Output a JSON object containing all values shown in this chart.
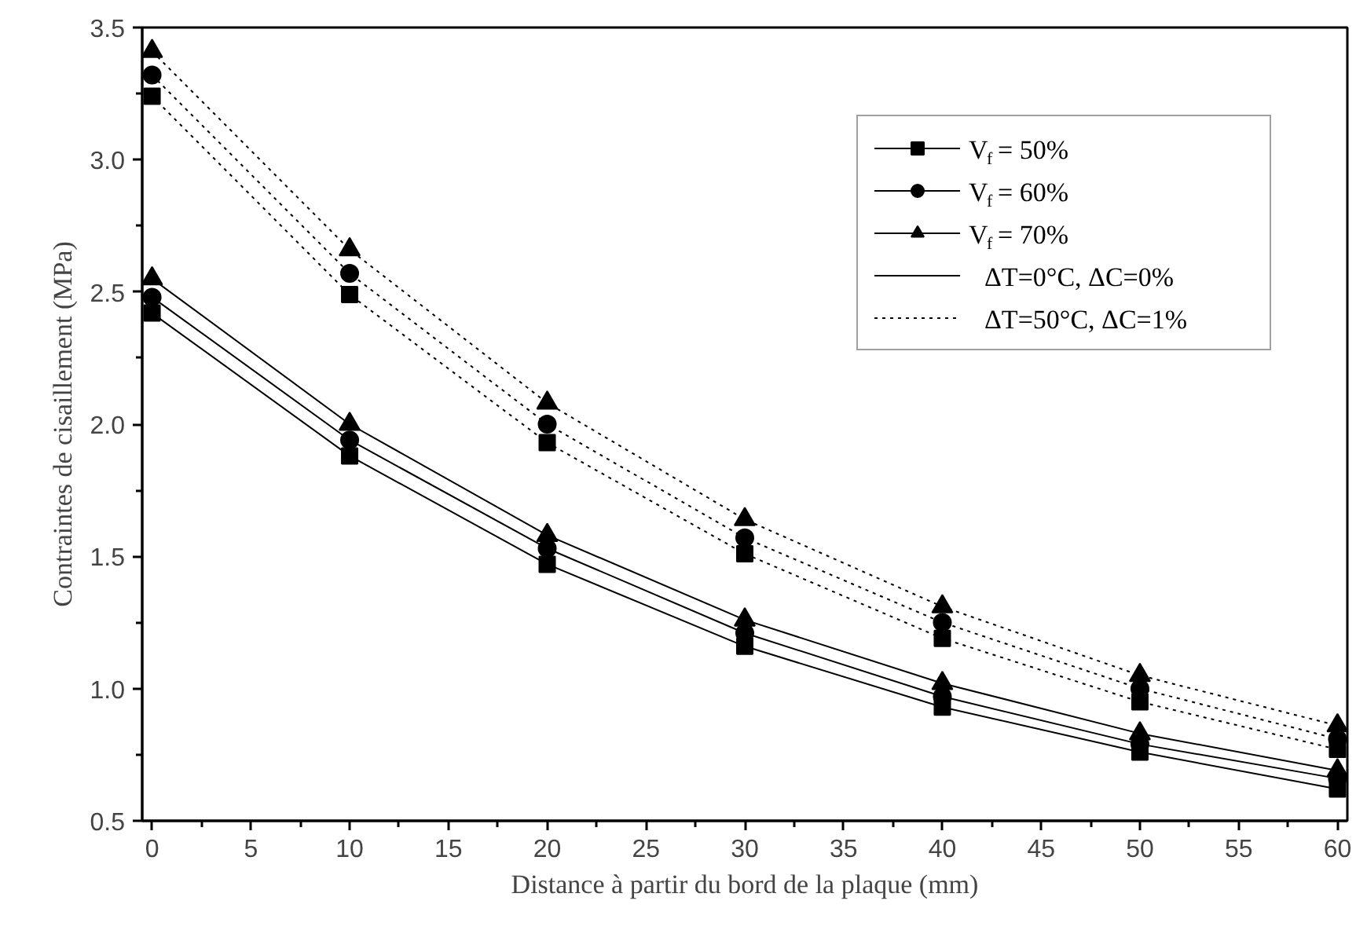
{
  "chart_data": {
    "type": "line",
    "xlabel": "Distance à partir du bord de la plaque (mm)",
    "ylabel": "Contraintes de cisaillement (MPa)",
    "x": [
      0,
      10,
      20,
      30,
      40,
      50,
      60
    ],
    "xlim": [
      -0.5,
      60.5
    ],
    "xticks": [
      0,
      5,
      10,
      15,
      20,
      25,
      30,
      35,
      40,
      45,
      50,
      55,
      60
    ],
    "ylim": [
      0.5,
      3.5
    ],
    "yticks": [
      {
        "value": 0.5,
        "label": "0.5"
      },
      {
        "value": 1.0,
        "label": "1.0"
      },
      {
        "value": 1.5,
        "label": "1.5"
      },
      {
        "value": 2.0,
        "label": "2.0"
      },
      {
        "value": 2.5,
        "label": "2.5"
      },
      {
        "value": 3.0,
        "label": "3.0"
      },
      {
        "value": 3.5,
        "label": "3.5"
      }
    ],
    "grid": false,
    "legend": "top right",
    "series": [
      {
        "name": "V$_{f}$ = 50%",
        "color": "#000000",
        "marker": "square",
        "line_style": "solid",
        "values": [
          2.42,
          1.88,
          1.47,
          1.16,
          0.93,
          0.76,
          0.62
        ]
      },
      {
        "name": "V$_{f}$ = 60%",
        "color": "#000000",
        "marker": "circle",
        "line_style": "solid",
        "values": [
          2.48,
          1.94,
          1.53,
          1.21,
          0.97,
          0.79,
          0.66
        ]
      },
      {
        "name": "V$_{f}$ = 70%",
        "color": "#000000",
        "marker": "triangle",
        "line_style": "solid",
        "values": [
          2.55,
          2.0,
          1.58,
          1.26,
          1.02,
          0.83,
          0.69
        ]
      },
      {
        "color": "#000000",
        "marker": "square",
        "line_style": "dotted",
        "values": [
          3.24,
          2.49,
          1.93,
          1.51,
          1.19,
          0.95,
          0.77
        ]
      },
      {
        "color": "#000000",
        "marker": "circle",
        "line_style": "dotted",
        "values": [
          3.32,
          2.57,
          2.0,
          1.57,
          1.25,
          1.0,
          0.81
        ]
      },
      {
        "color": "#000000",
        "marker": "triangle",
        "line_style": "dotted",
        "values": [
          3.41,
          2.66,
          2.08,
          1.64,
          1.31,
          1.05,
          0.86
        ]
      }
    ],
    "annotations": [
      "ΔT=0°C, ΔC=0%",
      "ΔT=50°C, ΔC=1%"
    ]
  }
}
